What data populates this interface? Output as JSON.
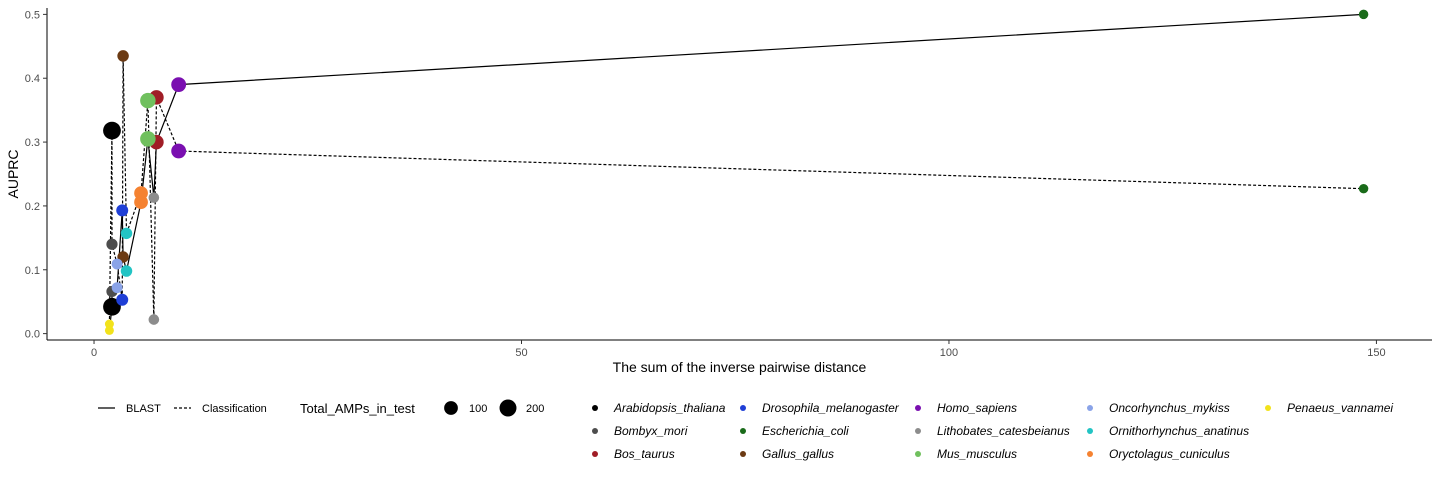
{
  "chart_data": {
    "type": "line",
    "xlabel": "The sum of the inverse pairwise distance",
    "ylabel": "AUPRC",
    "xlim": [
      -5.5,
      156.5
    ],
    "ylim": [
      -0.01,
      0.51
    ],
    "x_ticks": [
      0,
      50,
      100,
      150
    ],
    "y_ticks": [
      0.0,
      0.1,
      0.2,
      0.3,
      0.4,
      0.5
    ],
    "x_tick_labels": [
      "0",
      "50",
      "100",
      "150"
    ],
    "y_tick_labels": [
      "0.0",
      "0.1",
      "0.2",
      "0.3",
      "0.4",
      "0.5"
    ],
    "grid": false,
    "legend_position": "bottom",
    "linetype_legend": {
      "items": [
        {
          "label": "BLAST",
          "dash": "solid"
        },
        {
          "label": "Classification",
          "dash": "dotted"
        }
      ]
    },
    "size_legend": {
      "title": "Total_AMPs_in_test",
      "items": [
        {
          "label": "100",
          "value": 100
        },
        {
          "label": "200",
          "value": 200
        }
      ]
    },
    "species": [
      {
        "name": "Arabidopsis_thaliana",
        "color": "#000000",
        "x": 2.1,
        "blast": 0.042,
        "classification": 0.318,
        "amps": 230
      },
      {
        "name": "Bombyx_mori",
        "color": "#4d4d4d",
        "x": 2.1,
        "blast": 0.066,
        "classification": 0.14,
        "amps": 45
      },
      {
        "name": "Bos_taurus",
        "color": "#a01d26",
        "x": 7.3,
        "blast": 0.3,
        "classification": 0.37,
        "amps": 120
      },
      {
        "name": "Drosophila_melanogaster",
        "color": "#1f3fd6",
        "x": 3.3,
        "blast": 0.193,
        "classification": 0.053,
        "amps": 60
      },
      {
        "name": "Escherichia_coli",
        "color": "#1a6b1a",
        "x": 148.5,
        "blast": 0.5,
        "classification": 0.227,
        "amps": 20
      },
      {
        "name": "Gallus_gallus",
        "color": "#6b3a13",
        "x": 3.4,
        "blast": 0.12,
        "classification": 0.435,
        "amps": 50
      },
      {
        "name": "Homo_sapiens",
        "color": "#7a0fb0",
        "x": 9.9,
        "blast": 0.39,
        "classification": 0.286,
        "amps": 130
      },
      {
        "name": "Lithobates_catesbeianus",
        "color": "#8c8c8c",
        "x": 7.0,
        "blast": 0.213,
        "classification": 0.022,
        "amps": 35
      },
      {
        "name": "Mus_musculus",
        "color": "#70c05e",
        "x": 6.3,
        "blast": 0.305,
        "classification": 0.365,
        "amps": 150
      },
      {
        "name": "Oncorhynchus_mykiss",
        "color": "#8aa3e8",
        "x": 2.7,
        "blast": 0.072,
        "classification": 0.109,
        "amps": 40
      },
      {
        "name": "Ornithorhynchus_anatinus",
        "color": "#22c4c4",
        "x": 3.8,
        "blast": 0.098,
        "classification": 0.157,
        "amps": 50
      },
      {
        "name": "Oryctolagus_cuniculus",
        "color": "#f58231",
        "x": 5.5,
        "blast": 0.206,
        "classification": 0.22,
        "amps": 100
      },
      {
        "name": "Penaeus_vannamei",
        "color": "#f2e21b",
        "x": 1.8,
        "blast": 0.005,
        "classification": 0.015,
        "amps": 15
      }
    ]
  }
}
